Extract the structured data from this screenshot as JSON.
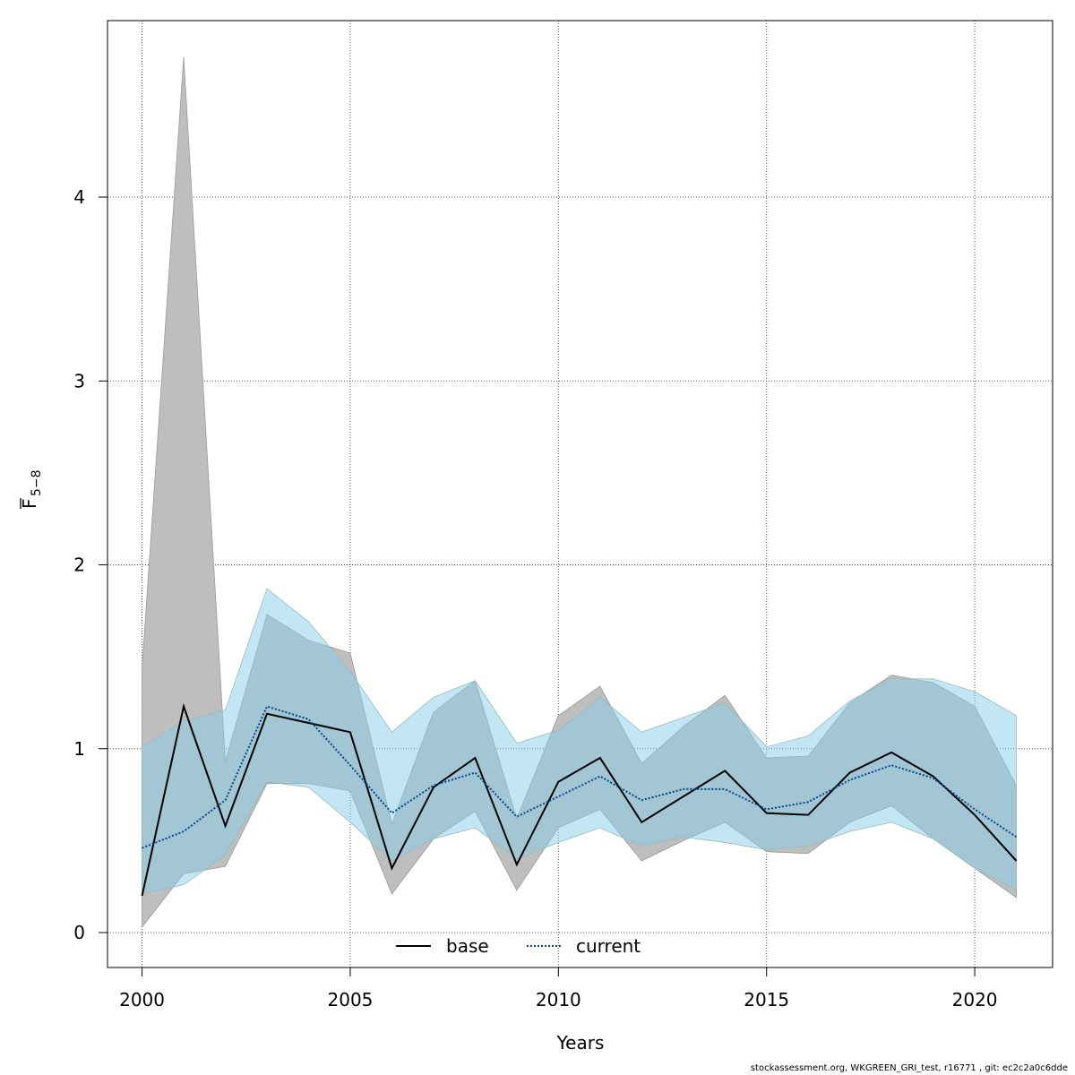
{
  "chart_data": {
    "type": "line",
    "xlabel": "Years",
    "ylabel": "F",
    "ylabel_subscript": "5−8",
    "xlim": [
      1999.17,
      2021.87
    ],
    "ylim": [
      -0.19,
      4.96
    ],
    "x_ticks": [
      2000,
      2005,
      2010,
      2015,
      2020
    ],
    "y_ticks": [
      0,
      1,
      2,
      3,
      4
    ],
    "grid": true,
    "legend": {
      "placement": "bottom-center"
    },
    "x": [
      2000,
      2001,
      2002,
      2003,
      2004,
      2005,
      2006,
      2007,
      2008,
      2009,
      2010,
      2011,
      2012,
      2013,
      2014,
      2015,
      2016,
      2017,
      2018,
      2019,
      2020,
      2021
    ],
    "series": [
      {
        "name": "base",
        "color": "#000000",
        "band_color": "#bebebe",
        "values": [
          0.2,
          1.23,
          0.58,
          1.19,
          1.14,
          1.09,
          0.35,
          0.79,
          0.95,
          0.37,
          0.82,
          0.95,
          0.6,
          0.74,
          0.88,
          0.65,
          0.64,
          0.87,
          0.98,
          0.85,
          0.64,
          0.39
        ],
        "lower": [
          0.03,
          0.32,
          0.36,
          0.81,
          0.81,
          0.77,
          0.21,
          0.51,
          0.66,
          0.23,
          0.57,
          0.67,
          0.39,
          0.5,
          0.6,
          0.44,
          0.43,
          0.6,
          0.69,
          0.51,
          0.35,
          0.19
        ],
        "upper": [
          1.44,
          4.76,
          0.93,
          1.73,
          1.59,
          1.52,
          0.59,
          1.2,
          1.37,
          0.62,
          1.18,
          1.34,
          0.92,
          1.12,
          1.29,
          0.95,
          0.96,
          1.25,
          1.4,
          1.36,
          1.23,
          0.8
        ]
      },
      {
        "name": "current",
        "color": "#00468b",
        "band_color": "#87ceeb",
        "values": [
          0.46,
          0.55,
          0.72,
          1.23,
          1.16,
          0.91,
          0.65,
          0.8,
          0.87,
          0.63,
          0.74,
          0.85,
          0.72,
          0.78,
          0.78,
          0.67,
          0.71,
          0.83,
          0.91,
          0.84,
          0.67,
          0.52
        ],
        "lower": [
          0.21,
          0.26,
          0.42,
          0.82,
          0.79,
          0.6,
          0.39,
          0.51,
          0.57,
          0.4,
          0.49,
          0.57,
          0.47,
          0.52,
          0.49,
          0.45,
          0.47,
          0.55,
          0.6,
          0.51,
          0.35,
          0.23
        ],
        "upper": [
          1.01,
          1.15,
          1.21,
          1.87,
          1.69,
          1.42,
          1.09,
          1.28,
          1.37,
          1.03,
          1.1,
          1.28,
          1.09,
          1.17,
          1.25,
          1.01,
          1.07,
          1.26,
          1.38,
          1.38,
          1.31,
          1.18
        ]
      }
    ]
  },
  "footer": "stockassessment.org, WKGREEN_GRI_test, r16771 , git: ec2c2a0c6dde"
}
